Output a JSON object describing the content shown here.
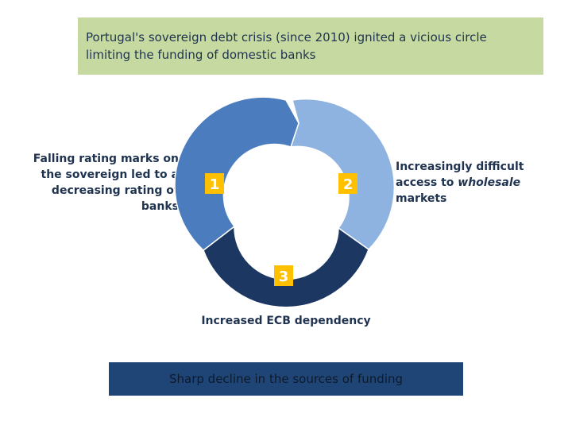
{
  "title": {
    "line1": "Portugal's sovereign debt crisis (since 2010) ignited a vicious circle",
    "line2": "limiting the funding of domestic banks"
  },
  "cycle": {
    "segments": [
      {
        "number": "1",
        "color": "#4a7cbe",
        "badge_color": "#ffc000"
      },
      {
        "number": "2",
        "color": "#8eb3e0",
        "badge_color": "#ffc000"
      },
      {
        "number": "3",
        "color": "#1c3862",
        "badge_color": "#ffc000"
      }
    ]
  },
  "left_text": {
    "line1": "Falling rating marks on",
    "line2": "the sovereign led to a",
    "line3": "decreasing rating of",
    "line4": "banks"
  },
  "right_text": {
    "line1": "Increasingly difficult",
    "line2_prefix": "access to ",
    "line2_em": "wholesale",
    "line3": "markets"
  },
  "bottom_label": "Increased ECB dependency",
  "banner": "Sharp decline in the sources of funding"
}
